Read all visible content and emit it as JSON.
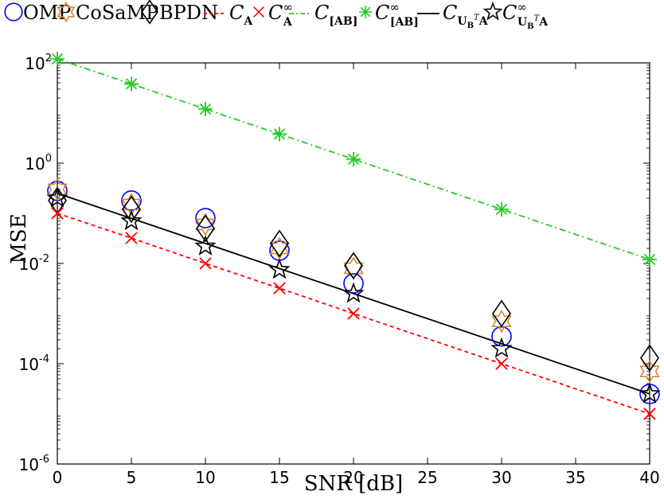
{
  "chart_data": {
    "type": "line",
    "xlabel": "SNR [dB]",
    "ylabel": "MSE",
    "yscale": "log",
    "xlim": [
      0,
      40
    ],
    "ylim": [
      1e-06,
      100
    ],
    "grid": false,
    "legend_position": "top",
    "x_ticks": [
      "0",
      "5",
      "10",
      "15",
      "20",
      "25",
      "30",
      "35",
      "40"
    ],
    "y_ticks": [
      {
        "base": "10",
        "exp": "2",
        "value": 100
      },
      {
        "base": "10",
        "exp": "0",
        "value": 1
      },
      {
        "base": "10",
        "exp": "-2",
        "value": 0.01
      },
      {
        "base": "10",
        "exp": "-4",
        "value": 0.0001
      },
      {
        "base": "10",
        "exp": "-6",
        "value": 1e-06
      }
    ],
    "x": [
      0,
      5,
      10,
      15,
      20,
      30,
      40
    ],
    "series": [
      {
        "name": "OMP",
        "style": "marker",
        "marker": "circle",
        "color": "#0000ff",
        "values": [
          0.28,
          0.18,
          0.08,
          0.018,
          0.004,
          0.00035,
          2.5e-05
        ]
      },
      {
        "name": "CoSaMP",
        "style": "marker",
        "marker": "hexagram",
        "color": "#d4862b",
        "values": [
          0.3,
          0.15,
          0.06,
          0.02,
          0.008,
          0.0007,
          7e-05
        ]
      },
      {
        "name": "BPDN",
        "style": "marker",
        "marker": "diamond",
        "color": "#000000",
        "values": [
          0.18,
          0.12,
          0.05,
          0.025,
          0.009,
          0.001,
          0.00013
        ]
      },
      {
        "name": "C_A",
        "style": "dashed",
        "marker": "x",
        "color": "#ff0000",
        "values": [
          0.1,
          0.032,
          0.01,
          0.0032,
          0.001,
          0.0001,
          1e-05
        ]
      },
      {
        "name": "C_A^∞",
        "style": "marker",
        "marker": "x",
        "color": "#ff0000",
        "values": [
          0.1,
          0.032,
          0.01,
          0.0032,
          0.001,
          0.0001,
          1e-05
        ]
      },
      {
        "name": "C_[AB]",
        "style": "dashdot",
        "marker": "asterisk",
        "color": "#22cc22",
        "values": [
          120,
          38,
          12,
          3.8,
          1.2,
          0.12,
          0.012
        ]
      },
      {
        "name": "C_[AB]^∞",
        "style": "marker",
        "marker": "asterisk",
        "color": "#22cc22",
        "values": [
          120,
          38,
          12,
          3.8,
          1.2,
          0.12,
          0.012
        ]
      },
      {
        "name": "C_{U_B^T A}",
        "style": "solid",
        "marker": "none",
        "color": "#000000",
        "values": [
          0.25,
          0.079,
          0.025,
          0.0079,
          0.0025,
          0.00025,
          2.5e-05
        ]
      },
      {
        "name": "C_{U_B^T A}^∞",
        "style": "marker",
        "marker": "pentagram",
        "color": "#000000",
        "values": [
          0.2,
          0.07,
          0.022,
          0.0075,
          0.0025,
          0.0002,
          2.5e-05
        ]
      }
    ]
  },
  "legend": {
    "items": [
      {
        "marker": "circle",
        "color": "#0000ff",
        "label": "OMP"
      },
      {
        "marker": "hexagram",
        "color": "#d4862b",
        "label": "CoSaMP"
      },
      {
        "marker": "diamond",
        "color": "#000000",
        "label": "BPDN"
      },
      {
        "marker": "line",
        "color": "#ff0000",
        "dash": "4,3",
        "label": "C",
        "sub": "A",
        "sup": ""
      },
      {
        "marker": "x",
        "color": "#ff0000",
        "label": "C",
        "sub": "A",
        "sup": "∞"
      },
      {
        "marker": "line",
        "color": "#22cc22",
        "dash": "6,3,2,3",
        "label": "C",
        "sub": "[AB]",
        "sup": ""
      },
      {
        "marker": "asterisk",
        "color": "#22cc22",
        "label": "C",
        "sub": "[AB]",
        "sup": "∞"
      },
      {
        "marker": "line",
        "color": "#000000",
        "dash": "",
        "label": "C",
        "sub": "U",
        "subsup": "T",
        "subsub": "B",
        "subtail": "A",
        "sup": ""
      },
      {
        "marker": "pentagram",
        "color": "#000000",
        "label": "C",
        "sub": "U",
        "subsup": "T",
        "subsub": "B",
        "subtail": "A",
        "sup": "∞"
      }
    ]
  }
}
